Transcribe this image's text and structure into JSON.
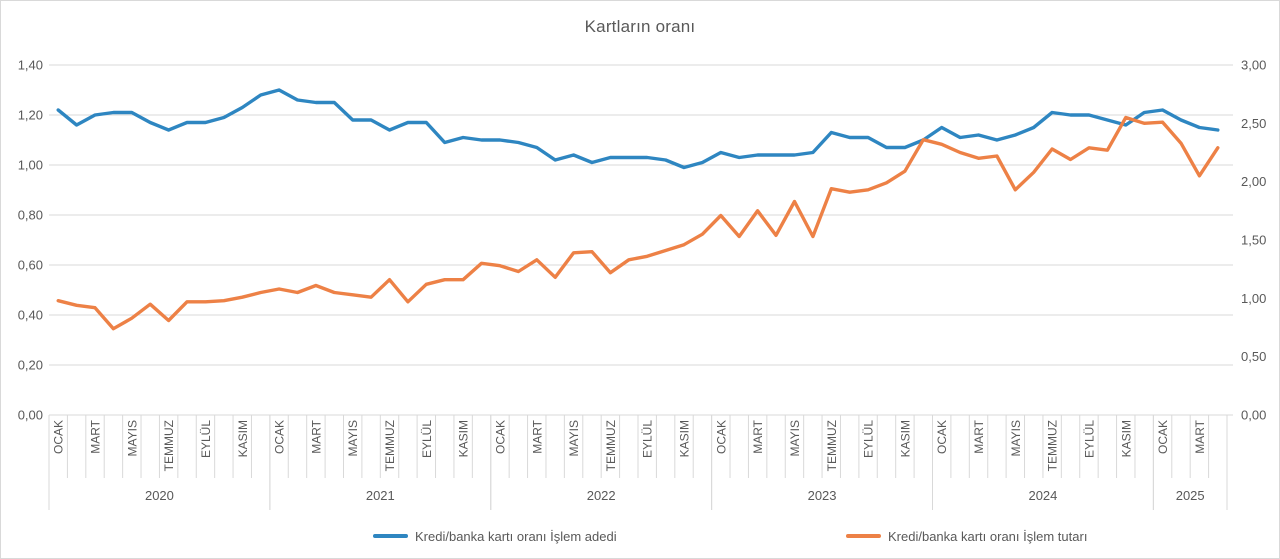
{
  "title": "Kartların oranı",
  "legend": {
    "items": [
      {
        "label": "Kredi/banka kartı oranı İşlem adedi",
        "series": "islem_adedi"
      },
      {
        "label": "Kredi/banka kartı oranı İşlem tutarı",
        "series": "islem_tutari"
      }
    ]
  },
  "colors": {
    "blue_series": "#2e86c1",
    "orange_series": "#ed8146",
    "gridline": "#d9d9d9",
    "axis_text": "#595959",
    "title_text": "#595959"
  },
  "chart_data": {
    "type": "line",
    "title": "Kartların oranı",
    "grid": true,
    "legend_position": "bottom",
    "x_years": [
      {
        "year": "2020",
        "months": 12
      },
      {
        "year": "2021",
        "months": 12
      },
      {
        "year": "2022",
        "months": 12
      },
      {
        "year": "2023",
        "months": 12
      },
      {
        "year": "2024",
        "months": 12
      },
      {
        "year": "2025",
        "months": 4
      }
    ],
    "month_tick_labels": [
      "OCAK",
      "MART",
      "MAYIS",
      "TEMMUZ",
      "EYLÜL",
      "KASIM"
    ],
    "left_axis": {
      "min": 0,
      "max": 1.4,
      "step": 0.2,
      "labels": [
        "0,00",
        "0,20",
        "0,40",
        "0,60",
        "0,80",
        "1,00",
        "1,20",
        "1,40"
      ]
    },
    "right_axis": {
      "min": 0,
      "max": 3.0,
      "step": 0.5,
      "labels": [
        "0,00",
        "0,50",
        "1,00",
        "1,50",
        "2,00",
        "2,50",
        "3,00"
      ]
    },
    "series": [
      {
        "name": "Kredi/banka kartı oranı İşlem adedi",
        "axis": "left",
        "color": "#2e86c1",
        "values": [
          1.22,
          1.16,
          1.2,
          1.21,
          1.21,
          1.17,
          1.14,
          1.17,
          1.17,
          1.19,
          1.23,
          1.28,
          1.3,
          1.26,
          1.25,
          1.25,
          1.18,
          1.18,
          1.14,
          1.17,
          1.17,
          1.09,
          1.11,
          1.1,
          1.1,
          1.09,
          1.07,
          1.02,
          1.04,
          1.01,
          1.03,
          1.03,
          1.03,
          1.02,
          0.99,
          1.01,
          1.05,
          1.03,
          1.04,
          1.04,
          1.04,
          1.05,
          1.13,
          1.11,
          1.11,
          1.07,
          1.07,
          1.1,
          1.15,
          1.11,
          1.12,
          1.1,
          1.12,
          1.15,
          1.21,
          1.2,
          1.2,
          1.18,
          1.16,
          1.21,
          1.22,
          1.18,
          1.15,
          1.14
        ]
      },
      {
        "name": "Kredi/banka kartı oranı İşlem tutarı",
        "axis": "right",
        "color": "#ed8146",
        "values": [
          0.98,
          0.94,
          0.92,
          0.74,
          0.83,
          0.95,
          0.81,
          0.97,
          0.97,
          0.98,
          1.01,
          1.05,
          1.08,
          1.05,
          1.11,
          1.05,
          1.03,
          1.01,
          1.16,
          0.97,
          1.12,
          1.16,
          1.16,
          1.3,
          1.28,
          1.23,
          1.33,
          1.18,
          1.39,
          1.4,
          1.22,
          1.33,
          1.36,
          1.41,
          1.46,
          1.55,
          1.71,
          1.53,
          1.75,
          1.54,
          1.83,
          1.53,
          1.94,
          1.91,
          1.93,
          1.99,
          2.09,
          2.36,
          2.32,
          2.25,
          2.2,
          2.22,
          1.93,
          2.08,
          2.28,
          2.19,
          2.29,
          2.27,
          2.55,
          2.5,
          2.51,
          2.33,
          2.05,
          2.29
        ]
      }
    ]
  }
}
